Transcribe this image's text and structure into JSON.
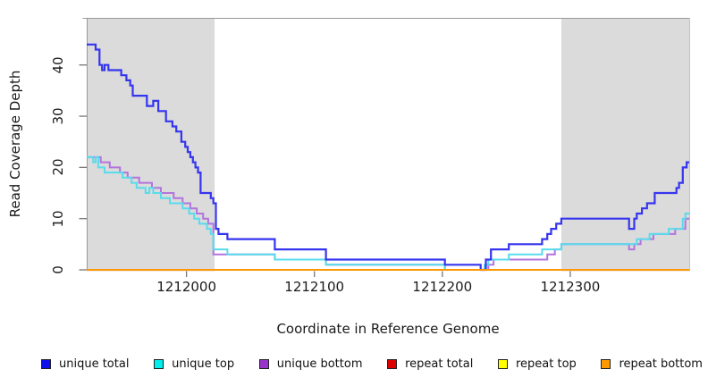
{
  "figure_title": "",
  "chart_data": {
    "type": "line",
    "line_style": "step-after",
    "title": "",
    "xlabel": "Coordinate in Reference Genome",
    "ylabel": "Read Coverage Depth",
    "xlim": [
      1211922,
      1212393
    ],
    "ylim": [
      0,
      49.2
    ],
    "x_ticks": [
      1212000,
      1212100,
      1212200,
      1212300
    ],
    "y_ticks": [
      0,
      10,
      20,
      30,
      40
    ],
    "grid": false,
    "legend_position": "bottom",
    "plot_background": "#ffffff",
    "band_color": "#dbdbdb",
    "frame_color": "#999999",
    "tick_color": "#777777",
    "shaded_regions": [
      {
        "x0": 1211922,
        "x1": 1212022
      },
      {
        "x0": 1212293,
        "x1": 1212393
      }
    ],
    "draw_order": [
      3,
      4,
      2,
      1,
      0,
      5
    ],
    "series": [
      {
        "name": "unique total",
        "legend_color": "#1010ee",
        "line_color": "#3535ef",
        "line_width": 2.2,
        "points": [
          [
            1211922,
            44
          ],
          [
            1211929,
            43
          ],
          [
            1211932,
            40
          ],
          [
            1211934,
            39
          ],
          [
            1211936,
            40
          ],
          [
            1211939,
            39
          ],
          [
            1211949,
            38
          ],
          [
            1211953,
            37
          ],
          [
            1211956,
            36
          ],
          [
            1211958,
            34
          ],
          [
            1211969,
            32
          ],
          [
            1211974,
            33
          ],
          [
            1211978,
            31
          ],
          [
            1211984,
            29
          ],
          [
            1211989,
            28
          ],
          [
            1211992,
            27
          ],
          [
            1211996,
            25
          ],
          [
            1211999,
            24
          ],
          [
            1212001,
            23
          ],
          [
            1212003,
            22
          ],
          [
            1212005,
            21
          ],
          [
            1212007,
            20
          ],
          [
            1212009,
            19
          ],
          [
            1212011,
            15
          ],
          [
            1212019,
            14
          ],
          [
            1212021,
            13
          ],
          [
            1212023,
            8
          ],
          [
            1212025,
            7
          ],
          [
            1212032,
            6
          ],
          [
            1212069,
            4
          ],
          [
            1212109,
            2
          ],
          [
            1212202,
            1
          ],
          [
            1212230,
            0
          ],
          [
            1212234,
            2
          ],
          [
            1212238,
            4
          ],
          [
            1212252,
            5
          ],
          [
            1212278,
            6
          ],
          [
            1212282,
            7
          ],
          [
            1212285,
            8
          ],
          [
            1212289,
            9
          ],
          [
            1212293,
            10
          ],
          [
            1212346,
            8
          ],
          [
            1212350,
            10
          ],
          [
            1212352,
            11
          ],
          [
            1212356,
            12
          ],
          [
            1212360,
            13
          ],
          [
            1212366,
            15
          ],
          [
            1212383,
            16
          ],
          [
            1212385,
            17
          ],
          [
            1212388,
            20
          ],
          [
            1212391,
            21
          ],
          [
            1212393,
            21
          ]
        ]
      },
      {
        "name": "unique top",
        "legend_color": "#00eeee",
        "line_color": "#58dcec",
        "line_width": 2,
        "points": [
          [
            1211922,
            22
          ],
          [
            1211927,
            21
          ],
          [
            1211929,
            22
          ],
          [
            1211931,
            20
          ],
          [
            1211936,
            19
          ],
          [
            1211950,
            18
          ],
          [
            1211957,
            17
          ],
          [
            1211961,
            16
          ],
          [
            1211968,
            15
          ],
          [
            1211971,
            16
          ],
          [
            1211974,
            15
          ],
          [
            1211980,
            14
          ],
          [
            1211987,
            13
          ],
          [
            1211997,
            12
          ],
          [
            1212002,
            11
          ],
          [
            1212006,
            10
          ],
          [
            1212010,
            9
          ],
          [
            1212016,
            8
          ],
          [
            1212019,
            7
          ],
          [
            1212021,
            4
          ],
          [
            1212032,
            3
          ],
          [
            1212069,
            2
          ],
          [
            1212109,
            1
          ],
          [
            1212202,
            0
          ],
          [
            1212233,
            1
          ],
          [
            1212236,
            2
          ],
          [
            1212252,
            3
          ],
          [
            1212278,
            4
          ],
          [
            1212293,
            5
          ],
          [
            1212352,
            6
          ],
          [
            1212362,
            7
          ],
          [
            1212377,
            8
          ],
          [
            1212388,
            10
          ],
          [
            1212390,
            11
          ],
          [
            1212393,
            11
          ]
        ]
      },
      {
        "name": "unique bottom",
        "legend_color": "#9933cc",
        "line_color": "#b274dd",
        "line_width": 2,
        "points": [
          [
            1211922,
            22
          ],
          [
            1211933,
            21
          ],
          [
            1211940,
            20
          ],
          [
            1211948,
            19
          ],
          [
            1211954,
            18
          ],
          [
            1211963,
            17
          ],
          [
            1211973,
            16
          ],
          [
            1211980,
            15
          ],
          [
            1211990,
            14
          ],
          [
            1211997,
            13
          ],
          [
            1212003,
            12
          ],
          [
            1212008,
            11
          ],
          [
            1212013,
            10
          ],
          [
            1212017,
            9
          ],
          [
            1212021,
            3
          ],
          [
            1212069,
            2
          ],
          [
            1212109,
            1
          ],
          [
            1212202,
            0
          ],
          [
            1212236,
            1
          ],
          [
            1212240,
            2
          ],
          [
            1212282,
            3
          ],
          [
            1212288,
            4
          ],
          [
            1212293,
            5
          ],
          [
            1212346,
            4
          ],
          [
            1212350,
            5
          ],
          [
            1212355,
            6
          ],
          [
            1212365,
            7
          ],
          [
            1212382,
            8
          ],
          [
            1212390,
            10
          ],
          [
            1212393,
            10
          ]
        ]
      },
      {
        "name": "repeat total",
        "legend_color": "#dd0000",
        "line_color": "#dd0000",
        "line_width": 2,
        "points": [
          [
            1211922,
            0
          ],
          [
            1212393,
            0
          ]
        ]
      },
      {
        "name": "repeat top",
        "legend_color": "#ffff00",
        "line_color": "#ffff00",
        "line_width": 2,
        "points": [
          [
            1211922,
            0
          ],
          [
            1212393,
            0
          ]
        ]
      },
      {
        "name": "repeat bottom",
        "legend_color": "#ff9900",
        "line_color": "#ff9800",
        "line_width": 2,
        "points": [
          [
            1211922,
            0
          ],
          [
            1212393,
            0
          ]
        ]
      }
    ]
  }
}
